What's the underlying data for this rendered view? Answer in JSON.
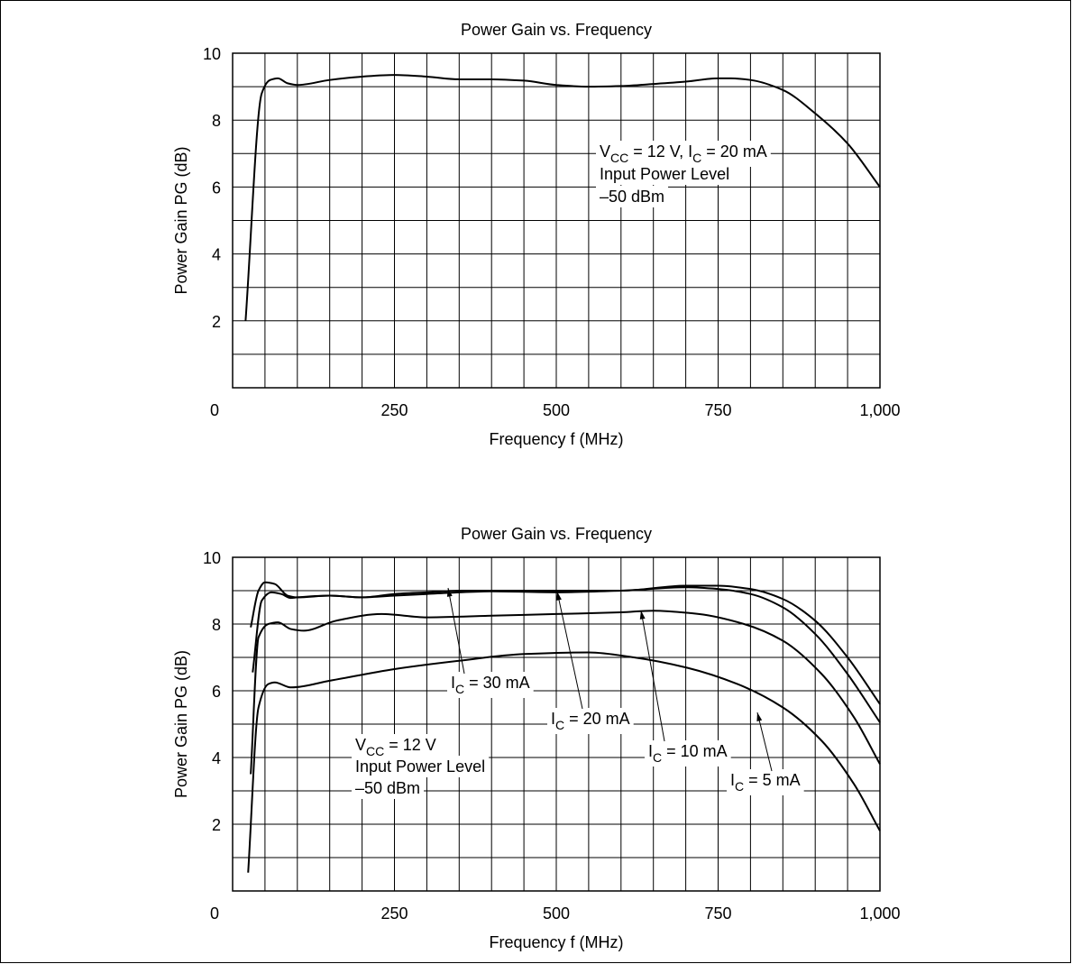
{
  "chart_data": [
    {
      "type": "line",
      "title": "Power Gain vs. Frequency",
      "xlabel": "Frequency  f  (MHz)",
      "ylabel": "Power Gain  PG  (dB)",
      "xlim": [
        0,
        1000
      ],
      "ylim": [
        0,
        10
      ],
      "xticks": [
        0,
        250,
        500,
        750,
        {
          "value": 1000,
          "label": "1,000"
        }
      ],
      "yticks": [
        2,
        4,
        6,
        8,
        10
      ],
      "xgrid_step": 50,
      "ygrid_step": 1,
      "color": "#000000",
      "x": [
        20,
        45,
        58,
        70,
        85,
        100,
        150,
        200,
        250,
        300,
        350,
        400,
        450,
        500,
        550,
        600,
        650,
        700,
        750,
        770,
        800,
        850,
        900,
        950,
        1000
      ],
      "values": [
        2,
        8.8,
        9.2,
        9.25,
        9.1,
        9.05,
        9.2,
        9.3,
        9.35,
        9.3,
        9.22,
        9.22,
        9.18,
        9.05,
        9.0,
        9.02,
        9.08,
        9.15,
        9.25,
        9.25,
        9.2,
        8.9,
        8.2,
        7.3,
        6.0
      ],
      "annotation": [
        [
          {
            "text": "V"
          },
          {
            "sub": "CC"
          },
          {
            "text": " = 12 V, I"
          },
          {
            "sub": "C"
          },
          {
            "text": " = 20 mA"
          }
        ],
        [
          {
            "text": "Input Power Level"
          }
        ],
        [
          {
            "text": "–50 dBm"
          }
        ]
      ]
    },
    {
      "type": "line",
      "title": "Power Gain vs. Frequency",
      "xlabel": "Frequency  f  (MHz)",
      "ylabel": "Power Gain  PG  (dB)",
      "xlim": [
        0,
        1000
      ],
      "ylim": [
        0,
        10
      ],
      "xticks": [
        0,
        250,
        500,
        750,
        {
          "value": 1000,
          "label": "1,000"
        }
      ],
      "yticks": [
        2,
        4,
        6,
        8,
        10
      ],
      "xgrid_step": 50,
      "ygrid_step": 1,
      "series": [
        {
          "name": [
            {
              "text": "I"
            },
            {
              "sub": "C"
            },
            {
              "text": " = 30 mA"
            }
          ],
          "color": "#000000",
          "x": [
            28,
            40,
            50,
            65,
            85,
            100,
            150,
            200,
            250,
            300,
            350,
            400,
            500,
            600,
            700,
            750,
            800,
            850,
            900,
            950,
            1000
          ],
          "values": [
            7.9,
            9.0,
            9.25,
            9.2,
            8.85,
            8.8,
            8.85,
            8.8,
            8.9,
            8.95,
            9.0,
            9.0,
            9.0,
            9.0,
            9.15,
            9.15,
            9.05,
            8.75,
            8.1,
            7.0,
            5.6
          ]
        },
        {
          "name": [
            {
              "text": "I"
            },
            {
              "sub": "C"
            },
            {
              "text": " = 20 mA"
            }
          ],
          "color": "#000000",
          "x": [
            31,
            45,
            60,
            75,
            90,
            100,
            150,
            200,
            250,
            300,
            350,
            400,
            500,
            600,
            700,
            750,
            800,
            850,
            900,
            950,
            1000
          ],
          "values": [
            6.55,
            8.7,
            8.95,
            8.9,
            8.78,
            8.8,
            8.85,
            8.8,
            8.85,
            8.9,
            8.95,
            8.98,
            8.95,
            9.0,
            9.1,
            9.05,
            8.9,
            8.5,
            7.7,
            6.5,
            5.05
          ]
        },
        {
          "name": [
            {
              "text": "I"
            },
            {
              "sub": "C"
            },
            {
              "text": " = 10 mA"
            }
          ],
          "color": "#000000",
          "x": [
            28,
            40,
            55,
            70,
            90,
            110,
            160,
            230,
            300,
            400,
            500,
            600,
            650,
            720,
            790,
            850,
            910,
            960,
            1000
          ],
          "values": [
            3.5,
            7.6,
            8.0,
            8.05,
            7.85,
            7.8,
            8.1,
            8.3,
            8.2,
            8.25,
            8.3,
            8.35,
            8.4,
            8.3,
            8.0,
            7.5,
            6.5,
            5.2,
            3.8
          ]
        },
        {
          "name": [
            {
              "text": "I"
            },
            {
              "sub": "C"
            },
            {
              "text": " = 5 mA"
            }
          ],
          "color": "#000000",
          "x": [
            24,
            40,
            55,
            65,
            90,
            150,
            250,
            350,
            450,
            550,
            620,
            700,
            780,
            850,
            910,
            960,
            1000
          ],
          "values": [
            0.55,
            5.5,
            6.2,
            6.25,
            6.1,
            6.3,
            6.65,
            6.9,
            7.1,
            7.15,
            7.0,
            6.7,
            6.2,
            5.5,
            4.5,
            3.2,
            1.8
          ]
        }
      ],
      "annotation": [
        [
          {
            "text": "V"
          },
          {
            "sub": "CC"
          },
          {
            "text": " = 12 V"
          }
        ],
        [
          {
            "text": "Input Power Level"
          }
        ],
        [
          {
            "text": "–50 dBm"
          }
        ]
      ]
    }
  ]
}
